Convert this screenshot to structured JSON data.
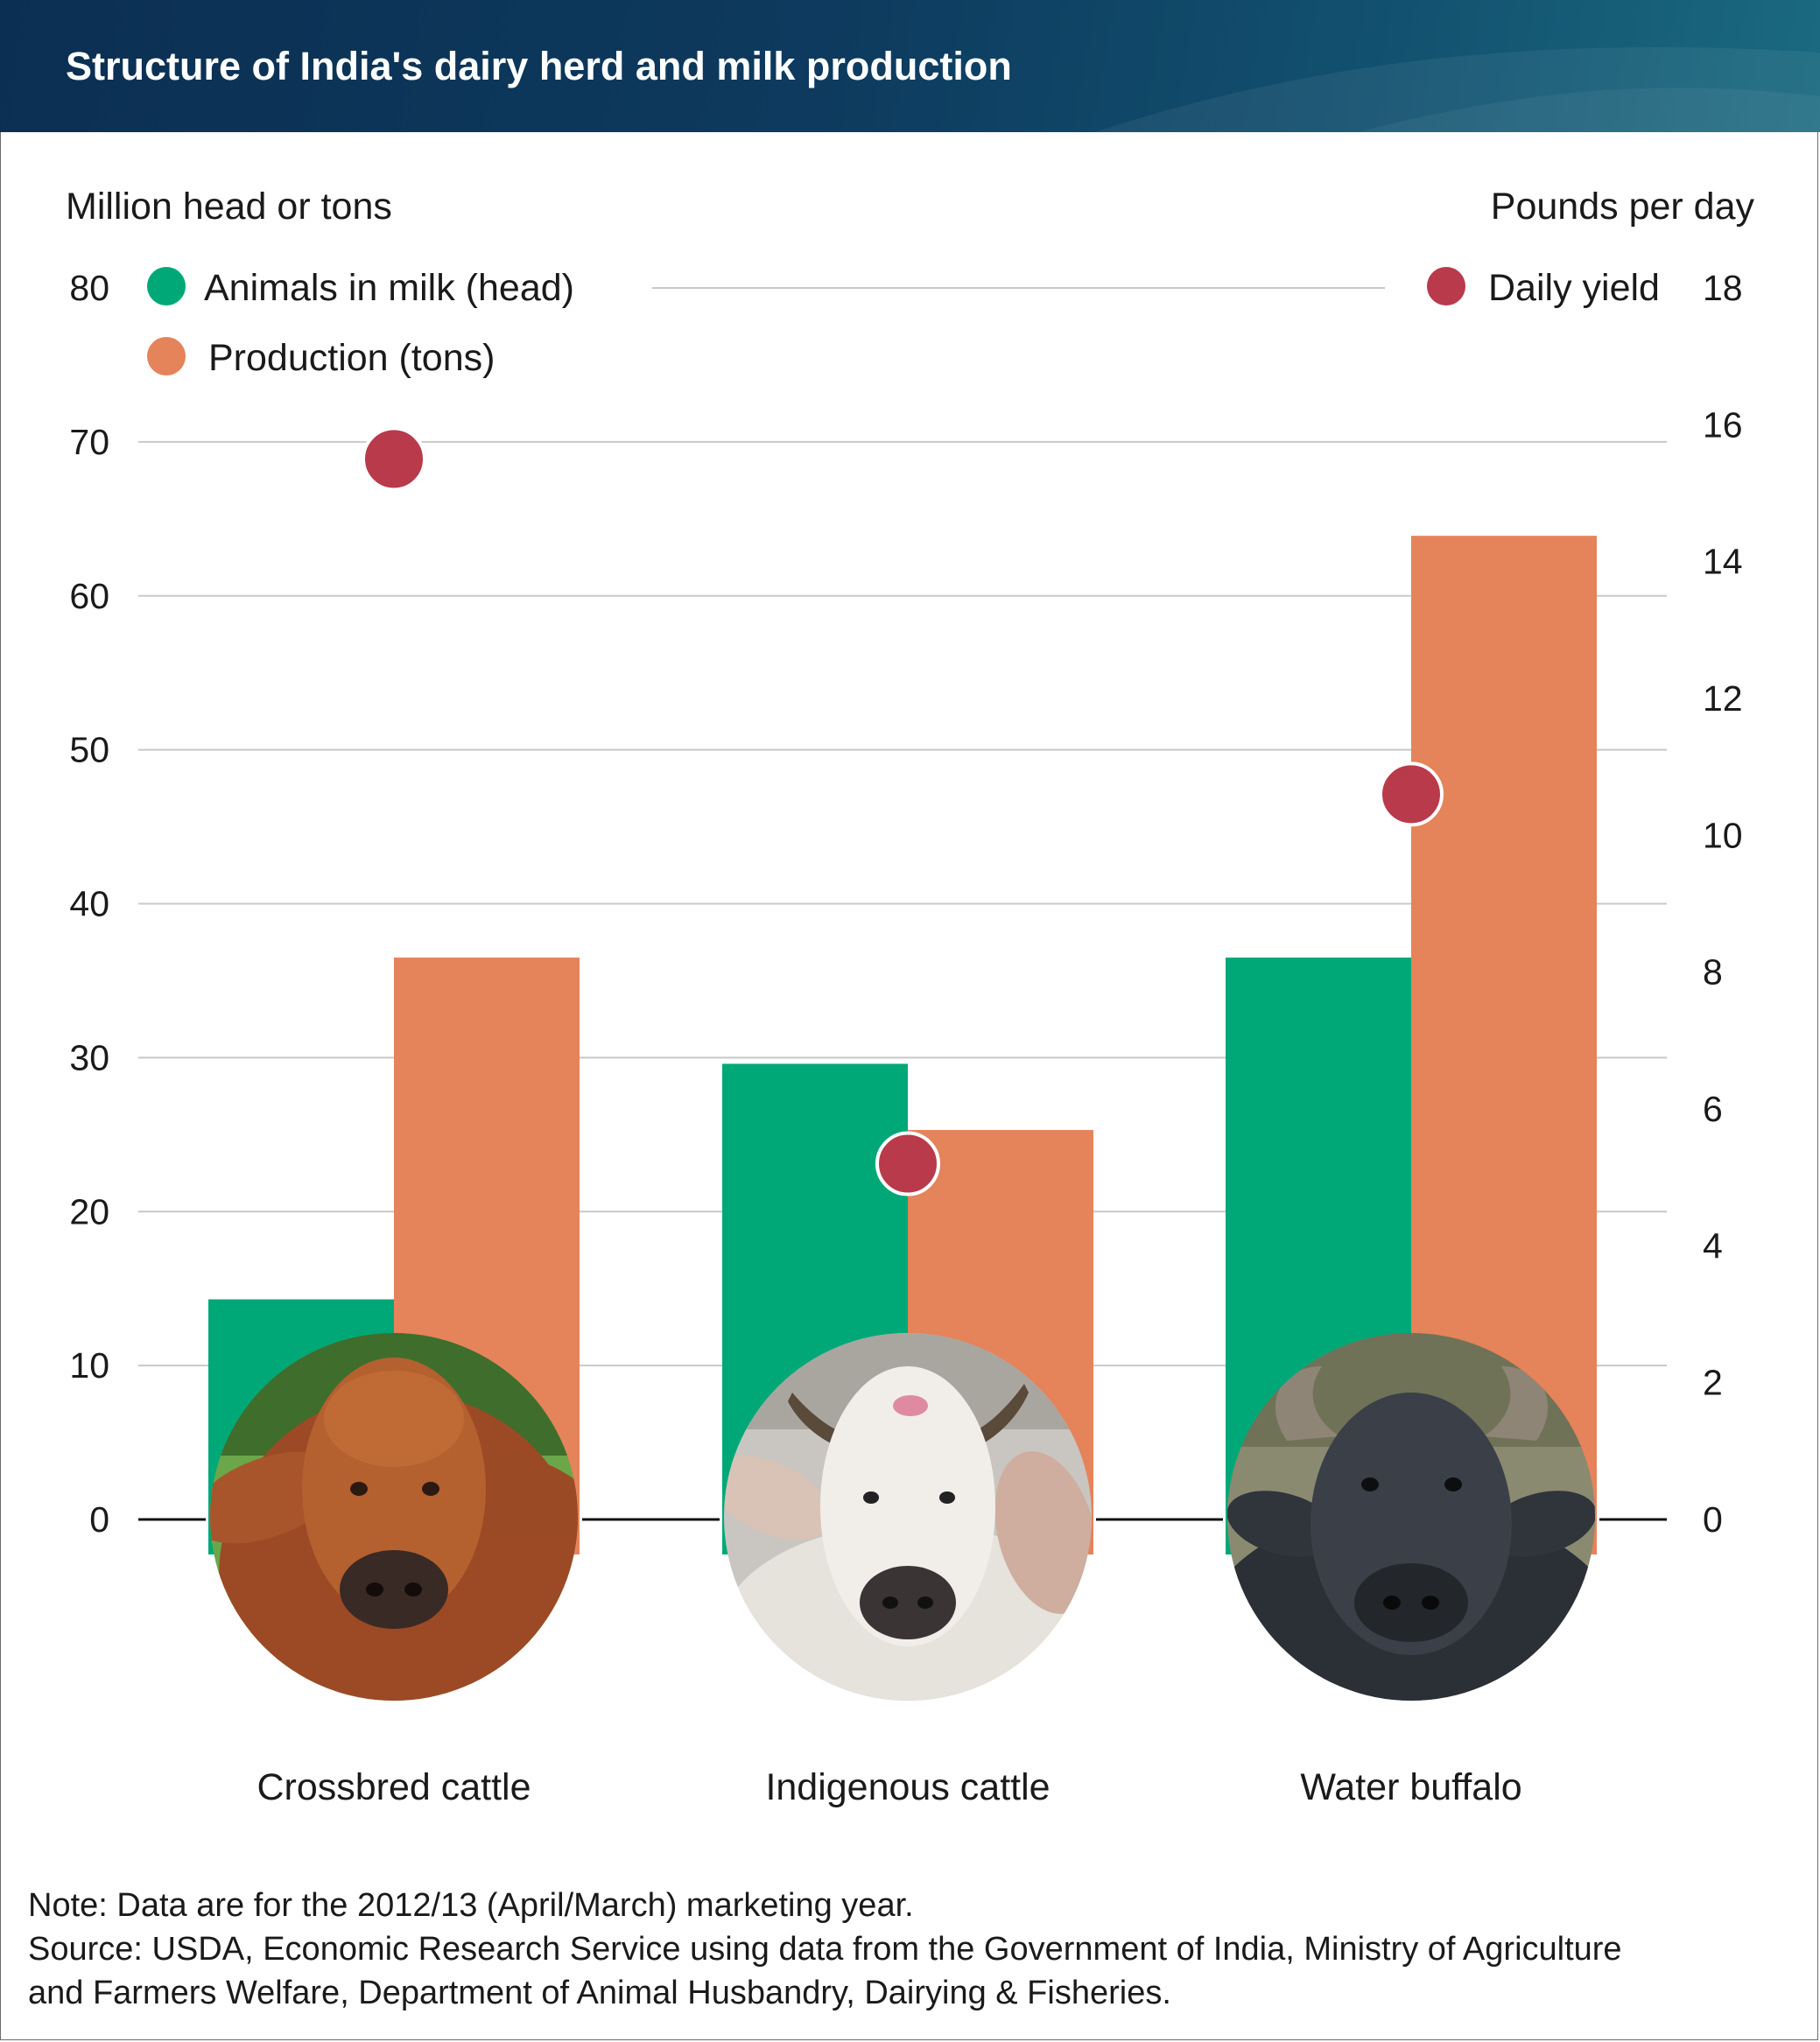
{
  "header": {
    "title": "Structure of India's dairy herd and milk production"
  },
  "colors": {
    "animals": "#00a878",
    "production": "#e5835a",
    "yield": "#b83a4b",
    "grid": "#c8c8c8",
    "baseline": "#111111"
  },
  "chart_data": {
    "type": "bar",
    "categories": [
      "Crossbred cattle",
      "Indigenous cattle",
      "Water buffalo"
    ],
    "series": [
      {
        "name": "Animals in milk (head)",
        "axis": "left",
        "values": [
          14.3,
          29.6,
          36.5
        ]
      },
      {
        "name": "Production (tons)",
        "axis": "left",
        "values": [
          36.5,
          25.3,
          63.9
        ]
      },
      {
        "name": "Daily yield",
        "axis": "right",
        "type": "scatter",
        "values": [
          15.5,
          5.2,
          10.6
        ]
      }
    ],
    "ylabel_left": "Million head or tons",
    "ylabel_right": "Pounds per day",
    "ylim_left": [
      0,
      80
    ],
    "ylim_right": [
      0,
      18
    ],
    "yticks_left": [
      "0",
      "10",
      "20",
      "30",
      "40",
      "50",
      "60",
      "70",
      "80"
    ],
    "yticks_right": [
      "0",
      "2",
      "4",
      "6",
      "8",
      "10",
      "12",
      "14",
      "16",
      "18"
    ],
    "grid": true,
    "legend_left": [
      "Animals in milk (head)",
      "Production (tons)"
    ],
    "legend_right": [
      "Daily yield"
    ],
    "images": [
      "cow-photo",
      "white-cow-photo",
      "buffalo-photo"
    ]
  },
  "notes": {
    "note": "Note: Data are for the 2012/13 (April/March) marketing year.",
    "source_line1": "Source: USDA, Economic Research Service using data from the Government of India, Ministry of Agriculture",
    "source_line2": "and Farmers Welfare, Department of Animal Husbandry, Dairying & Fisheries."
  }
}
